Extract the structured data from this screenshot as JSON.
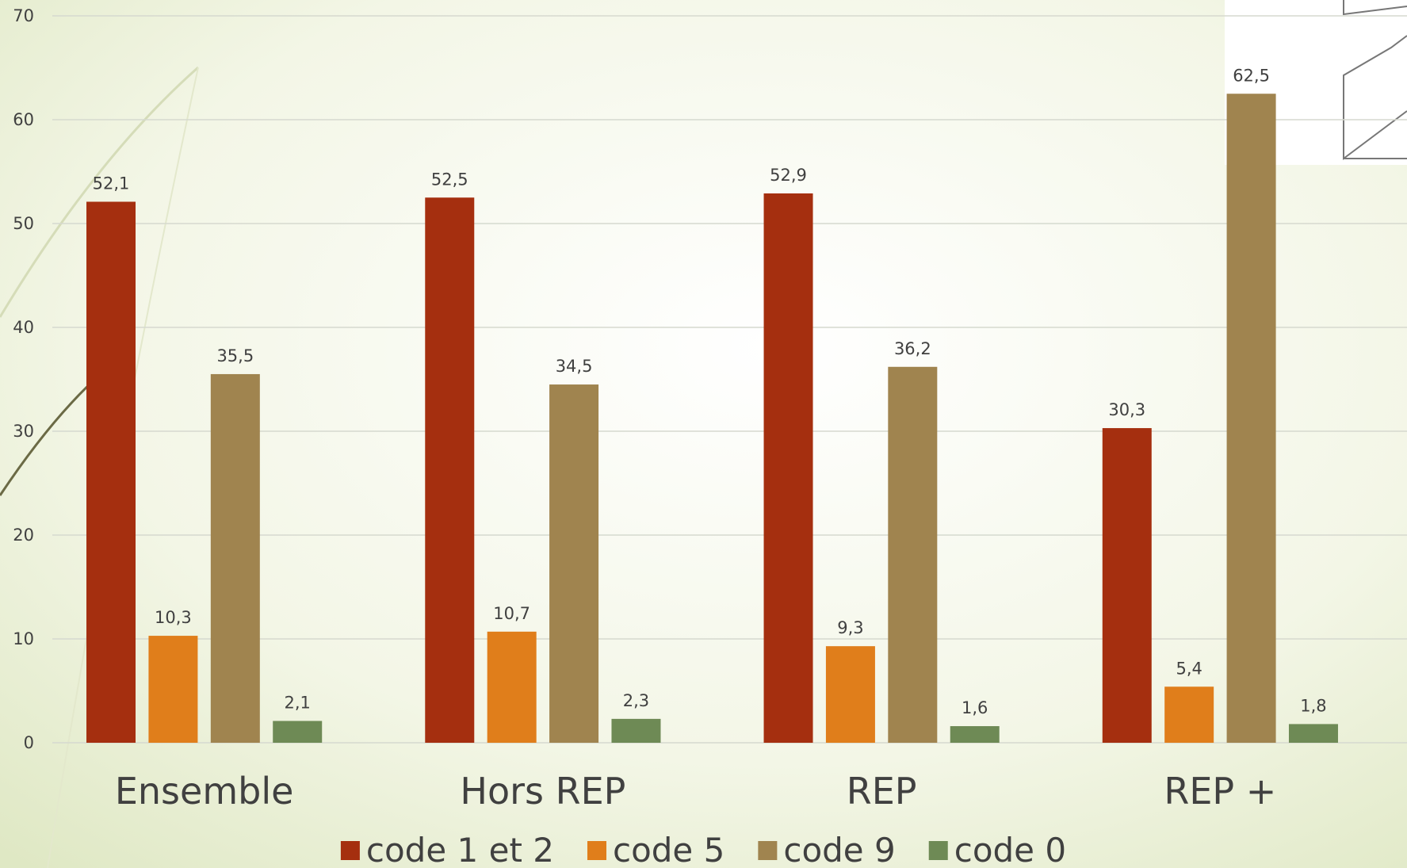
{
  "chart_data": {
    "type": "bar",
    "categories": [
      "Ensemble",
      "Hors REP",
      "REP",
      "REP +"
    ],
    "series": [
      {
        "name": "code 1 et 2",
        "color": "#a52f0f",
        "values": [
          52.1,
          52.5,
          52.9,
          30.3
        ],
        "value_labels": [
          "52,1",
          "52,5",
          "52,9",
          "30,3"
        ]
      },
      {
        "name": "code 5",
        "color": "#e07e1b",
        "values": [
          10.3,
          10.7,
          9.3,
          5.4
        ],
        "value_labels": [
          "10,3",
          "10,7",
          "9,3",
          "5,4"
        ]
      },
      {
        "name": "code 9",
        "color": "#a0844f",
        "values": [
          35.5,
          34.5,
          36.2,
          62.5
        ],
        "value_labels": [
          "35,5",
          "34,5",
          "36,2",
          "62,5"
        ]
      },
      {
        "name": "code 0",
        "color": "#6e8a55",
        "values": [
          2.1,
          2.3,
          1.6,
          1.8
        ],
        "value_labels": [
          "2,1",
          "2,3",
          "1,6",
          "1,8"
        ]
      }
    ],
    "ylim": [
      0,
      70
    ],
    "yticks": [
      0,
      10,
      20,
      30,
      40,
      50,
      60,
      70
    ],
    "grid": true,
    "legend": "bottom"
  }
}
